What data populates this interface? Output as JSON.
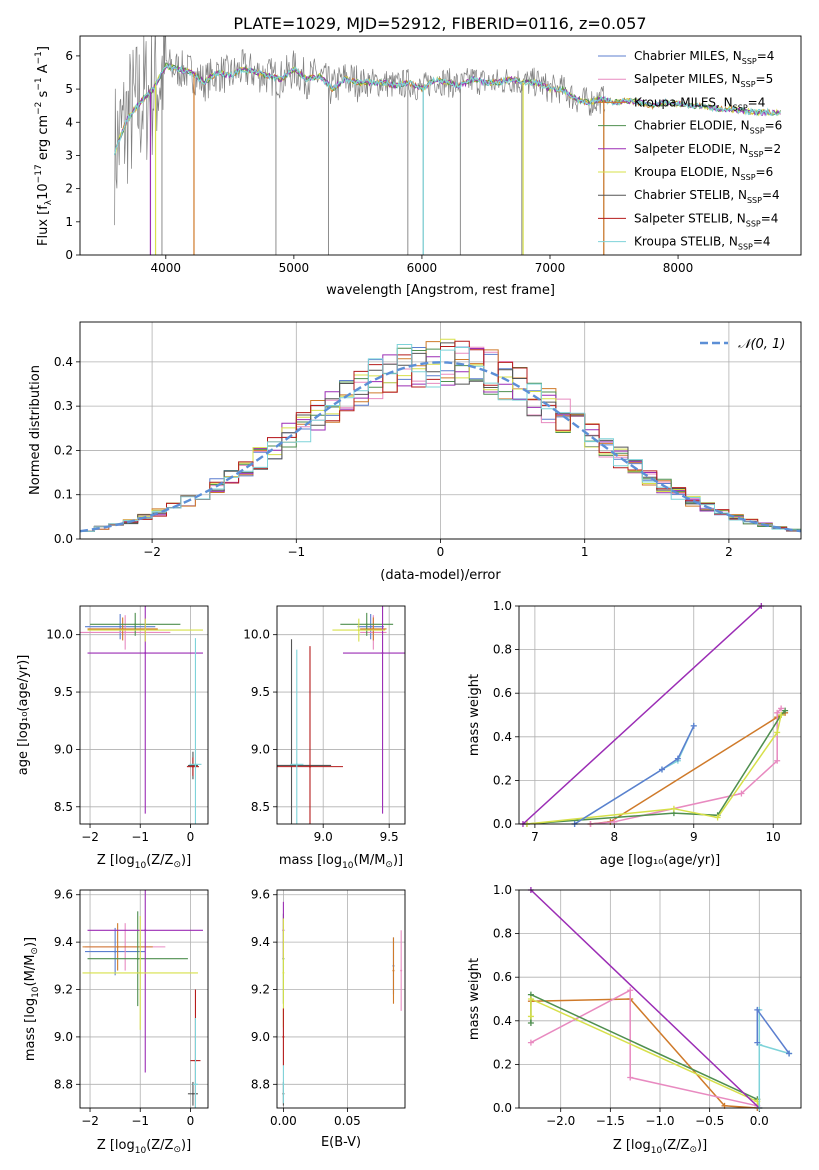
{
  "figure_title": "PLATE=1029, MJD=52912, FIBERID=0116, z=0.057",
  "colors": {
    "Chabrier MILES": "#5c7fcf",
    "Salpeter MILES": "#e88ac0",
    "Kroupa MILES": "#cf7a2a",
    "Chabrier ELODIE": "#4f8f4f",
    "Salpeter ELODIE": "#9b2db5",
    "Kroupa ELODIE": "#d7e04a",
    "Chabrier STELIB": "#555555",
    "Salpeter STELIB": "#b51c1c",
    "Kroupa STELIB": "#7ed3d9",
    "data": "#808080",
    "normal": "#5c8fd6",
    "grid": "#b0b0b0"
  },
  "chart_data": [
    {
      "id": "spectrum",
      "type": "line",
      "title": "PLATE=1029, MJD=52912, FIBERID=0116, z=0.057",
      "xlabel": "wavelength [Angstrom, rest frame]",
      "ylabel_main": "Flux [f",
      "ylabel_sub": "λ",
      "ylabel_rest": "10",
      "ylabel_exp1": "−17",
      "ylabel_mid": " erg cm",
      "ylabel_exp2": "−2",
      "ylabel_s": " s",
      "ylabel_exp3": "−1",
      "ylabel_a": " A",
      "ylabel_exp4": "−1",
      "ylabel_end": "]",
      "xlim": [
        3330,
        8960
      ],
      "ylim": [
        0,
        6.6
      ],
      "xticks": [
        4000,
        5000,
        6000,
        7000,
        8000
      ],
      "yticks": [
        0,
        1,
        2,
        3,
        4,
        5,
        6
      ],
      "grid": false,
      "legend_position": "right",
      "continuum": {
        "x": [
          3600,
          3700,
          3800,
          3900,
          4000,
          4100,
          4200,
          4300,
          4400,
          4500,
          4600,
          4700,
          4800,
          4900,
          5000,
          5100,
          5200,
          5300,
          5400,
          5500,
          5600,
          5700,
          5800,
          5900,
          6000,
          6100,
          6200,
          6300,
          6400,
          6500,
          6600,
          6700,
          6800,
          6900,
          7000,
          7100,
          7200,
          7300,
          7400,
          7500,
          7600,
          7700,
          7800,
          7900,
          8000,
          8100,
          8200,
          8300,
          8400,
          8500,
          8600,
          8700,
          8800
        ],
        "y": [
          3.1,
          4.1,
          4.6,
          5.0,
          5.7,
          5.6,
          5.5,
          5.2,
          5.5,
          5.4,
          5.6,
          5.5,
          5.4,
          5.3,
          5.6,
          5.3,
          5.4,
          5.0,
          5.3,
          5.2,
          5.2,
          5.2,
          5.1,
          5.2,
          5.0,
          5.3,
          5.2,
          5.1,
          5.3,
          5.2,
          5.2,
          5.3,
          5.2,
          5.2,
          5.0,
          5.0,
          4.7,
          4.6,
          4.7,
          4.6,
          4.65,
          4.6,
          4.5,
          4.6,
          4.55,
          4.5,
          4.5,
          4.4,
          4.4,
          4.35,
          4.3,
          4.3,
          4.3
        ]
      },
      "spikes": [
        3880,
        3970,
        4220,
        4860,
        5270,
        5890,
        6010,
        6300,
        6780,
        7420
      ],
      "series": [
        {
          "name_main": "Chabrier MILES, N",
          "name_sub": "SSP",
          "name_val": "=4",
          "color": "Chabrier MILES"
        },
        {
          "name_main": "Salpeter MILES, N",
          "name_sub": "SSP",
          "name_val": "=5",
          "color": "Salpeter MILES"
        },
        {
          "name_main": "Kroupa MILES, N",
          "name_sub": "SSP",
          "name_val": "=4",
          "color": "Kroupa MILES"
        },
        {
          "name_main": "Chabrier ELODIE, N",
          "name_sub": "SSP",
          "name_val": "=6",
          "color": "Chabrier ELODIE"
        },
        {
          "name_main": "Salpeter ELODIE, N",
          "name_sub": "SSP",
          "name_val": "=2",
          "color": "Salpeter ELODIE"
        },
        {
          "name_main": "Kroupa ELODIE, N",
          "name_sub": "SSP",
          "name_val": "=6",
          "color": "Kroupa ELODIE"
        },
        {
          "name_main": "Chabrier STELIB, N",
          "name_sub": "SSP",
          "name_val": "=4",
          "color": "Chabrier STELIB"
        },
        {
          "name_main": "Salpeter STELIB, N",
          "name_sub": "SSP",
          "name_val": "=4",
          "color": "Salpeter STELIB"
        },
        {
          "name_main": "Kroupa STELIB, N",
          "name_sub": "SSP",
          "name_val": "=4",
          "color": "Kroupa STELIB"
        }
      ]
    },
    {
      "id": "residuals",
      "type": "line",
      "xlabel": "(data-model)/error",
      "ylabel": "Normed distribution",
      "xlim": [
        -2.5,
        2.5
      ],
      "ylim": [
        0,
        0.49
      ],
      "xticks": [
        -2,
        -1,
        0,
        1,
        2
      ],
      "yticks": [
        0.0,
        0.1,
        0.2,
        0.3,
        0.4
      ],
      "grid": true,
      "legend_position": "top-right",
      "normal_label": "𝒩(0, 1)",
      "bin_edges_start": -2.5,
      "bin_width": 0.1
    },
    {
      "id": "age-vs-Z",
      "type": "scatter",
      "xlabel_main": "Z [log",
      "xlabel_sub": "10",
      "xlabel_rest": "(Z/Z",
      "xlabel_sun": "⊙",
      "xlabel_end": ")]",
      "ylabel": "age  [log₁₀(age/yr)]",
      "xlim": [
        -2.2,
        0.35
      ],
      "ylim": [
        8.35,
        10.25
      ],
      "xticks": [
        -2,
        -1,
        0
      ],
      "yticks": [
        8.5,
        9.0,
        9.5,
        10.0
      ],
      "points": [
        {
          "x": -1.4,
          "y": 10.07,
          "xerr": 0.7,
          "yerr": 0.11,
          "color": "Chabrier MILES"
        },
        {
          "x": -1.3,
          "y": 10.02,
          "xerr": 0.9,
          "yerr": 0.15,
          "color": "Salpeter MILES"
        },
        {
          "x": -1.35,
          "y": 10.05,
          "xerr": 0.7,
          "yerr": 0.1,
          "color": "Kroupa MILES"
        },
        {
          "x": -1.1,
          "y": 10.09,
          "xerr": 0.9,
          "yerr": 0.1,
          "color": "Chabrier ELODIE"
        },
        {
          "x": -0.9,
          "y": 9.84,
          "xerr": 1.15,
          "yerr": 1.4,
          "color": "Salpeter ELODIE"
        },
        {
          "x": -0.9,
          "y": 10.04,
          "xerr": 1.15,
          "yerr": 0.1,
          "color": "Kroupa ELODIE"
        },
        {
          "x": 0.05,
          "y": 8.86,
          "xerr": 0.1,
          "yerr": 0.12,
          "color": "Chabrier STELIB"
        },
        {
          "x": 0.05,
          "y": 8.85,
          "xerr": 0.12,
          "yerr": 0.08,
          "color": "Salpeter STELIB"
        },
        {
          "x": 0.1,
          "y": 8.87,
          "xerr": 0.12,
          "yerr": 1.1,
          "color": "Kroupa STELIB"
        }
      ]
    },
    {
      "id": "age-vs-mass",
      "type": "scatter",
      "xlabel_main": "mass [log",
      "xlabel_sub": "10",
      "xlabel_rest": "(M/M",
      "xlabel_sun": "⊙",
      "xlabel_end": ")]",
      "xlim": [
        8.65,
        9.62
      ],
      "ylim": [
        8.35,
        10.25
      ],
      "xticks": [
        9.0,
        9.5
      ],
      "yticks": [
        8.5,
        9.0,
        9.5,
        10.0
      ],
      "points": [
        {
          "x": 9.36,
          "y": 10.07,
          "xerr": 0.1,
          "yerr": 0.11,
          "color": "Chabrier MILES"
        },
        {
          "x": 9.38,
          "y": 10.02,
          "xerr": 0.1,
          "yerr": 0.15,
          "color": "Salpeter MILES"
        },
        {
          "x": 9.38,
          "y": 10.05,
          "xerr": 0.1,
          "yerr": 0.1,
          "color": "Kroupa MILES"
        },
        {
          "x": 9.33,
          "y": 10.09,
          "xerr": 0.2,
          "yerr": 0.1,
          "color": "Chabrier ELODIE"
        },
        {
          "x": 9.45,
          "y": 9.84,
          "xerr": 0.3,
          "yerr": 1.4,
          "color": "Salpeter ELODIE"
        },
        {
          "x": 9.27,
          "y": 10.04,
          "xerr": 0.2,
          "yerr": 0.1,
          "color": "Kroupa ELODIE"
        },
        {
          "x": 8.76,
          "y": 8.86,
          "xerr": 0.3,
          "yerr": 1.1,
          "color": "Chabrier STELIB"
        },
        {
          "x": 8.9,
          "y": 8.85,
          "xerr": 0.25,
          "yerr": 1.05,
          "color": "Salpeter STELIB"
        },
        {
          "x": 8.8,
          "y": 8.87,
          "xerr": 0.05,
          "yerr": 1.0,
          "color": "Kroupa STELIB"
        }
      ]
    },
    {
      "id": "mass-weight-vs-age",
      "type": "line",
      "xlabel": "age  [log₁₀(age/yr)]",
      "ylabel": "mass weight",
      "xlim": [
        6.8,
        10.35
      ],
      "ylim": [
        0,
        1.0
      ],
      "xticks": [
        7,
        8,
        9,
        10
      ],
      "yticks": [
        0.0,
        0.2,
        0.4,
        0.6,
        0.8,
        1.0
      ],
      "grid": true,
      "series": [
        {
          "color": "Kroupa MILES",
          "x": [
            7.7,
            7.95,
            10.05,
            10.15
          ],
          "y": [
            0.0,
            0.01,
            0.49,
            0.51
          ]
        },
        {
          "color": "Salpeter MILES",
          "x": [
            7.7,
            8.0,
            9.6,
            10.05,
            10.05,
            10.1
          ],
          "y": [
            0.0,
            0.01,
            0.14,
            0.29,
            0.51,
            0.53
          ]
        },
        {
          "color": "Chabrier ELODIE",
          "x": [
            6.9,
            8.75,
            9.3,
            10.1,
            10.15
          ],
          "y": [
            0.0,
            0.05,
            0.04,
            0.5,
            0.52
          ]
        },
        {
          "color": "Kroupa ELODIE",
          "x": [
            6.9,
            8.75,
            9.3,
            10.05,
            10.1
          ],
          "y": [
            0.0,
            0.07,
            0.03,
            0.42,
            0.5
          ]
        },
        {
          "color": "Salpeter ELODIE",
          "x": [
            6.85,
            9.85
          ],
          "y": [
            0.0,
            1.0
          ]
        },
        {
          "color": "Kroupa STELIB",
          "x": [
            7.5,
            8.6,
            8.8,
            9.0
          ],
          "y": [
            0.0,
            0.25,
            0.29,
            0.45
          ]
        },
        {
          "color": "Chabrier MILES",
          "x": [
            7.5,
            8.6,
            8.8,
            9.0
          ],
          "y": [
            0.0,
            0.25,
            0.3,
            0.45
          ]
        }
      ]
    },
    {
      "id": "mass-vs-Z",
      "type": "scatter",
      "ylabel_main": "mass [log",
      "ylabel_sub": "10",
      "ylabel_rest": "(M/M",
      "ylabel_sun": "⊙",
      "ylabel_end": ")]",
      "xlabel_main": "Z [log",
      "xlabel_sub": "10",
      "xlabel_rest": "(Z/Z",
      "xlabel_sun": "⊙",
      "xlabel_end": ")]",
      "xlim": [
        -2.2,
        0.35
      ],
      "ylim": [
        8.7,
        9.62
      ],
      "xticks": [
        -2,
        -1,
        0
      ],
      "yticks": [
        8.8,
        9.0,
        9.2,
        9.4,
        9.6
      ],
      "points": [
        {
          "x": -1.5,
          "y": 9.36,
          "xerr": 0.6,
          "yerr": 0.1,
          "color": "Chabrier MILES"
        },
        {
          "x": -1.3,
          "y": 9.38,
          "xerr": 0.8,
          "yerr": 0.1,
          "color": "Salpeter MILES"
        },
        {
          "x": -1.45,
          "y": 9.38,
          "xerr": 0.7,
          "yerr": 0.1,
          "color": "Kroupa MILES"
        },
        {
          "x": -1.05,
          "y": 9.33,
          "xerr": 1.0,
          "yerr": 0.2,
          "color": "Chabrier ELODIE"
        },
        {
          "x": -0.9,
          "y": 9.45,
          "xerr": 1.15,
          "yerr": 0.6,
          "color": "Salpeter ELODIE"
        },
        {
          "x": -1.0,
          "y": 9.27,
          "xerr": 1.15,
          "yerr": 0.24,
          "color": "Kroupa ELODIE"
        },
        {
          "x": 0.05,
          "y": 8.76,
          "xerr": 0.1,
          "yerr": 0.05,
          "color": "Chabrier STELIB"
        },
        {
          "x": 0.1,
          "y": 8.9,
          "xerr": 0.1,
          "yerr": 0.3,
          "color": "Salpeter STELIB"
        },
        {
          "x": 0.1,
          "y": 8.8,
          "xerr": 0.05,
          "yerr": 0.28,
          "color": "Kroupa STELIB"
        }
      ]
    },
    {
      "id": "mass-vs-EBV",
      "type": "scatter",
      "xlabel": "E(B-V)",
      "xlim": [
        -0.005,
        0.095
      ],
      "ylim": [
        8.7,
        9.62
      ],
      "xticks": [
        0.0,
        0.05
      ],
      "yticks": [
        8.8,
        9.0,
        9.2,
        9.4,
        9.6
      ],
      "points": [
        {
          "x": 0.086,
          "y": 9.3,
          "yerr": 0.12,
          "color": "Chabrier MILES"
        },
        {
          "x": 0.092,
          "y": 9.28,
          "yerr": 0.17,
          "color": "Salpeter MILES"
        },
        {
          "x": 0.086,
          "y": 9.28,
          "yerr": 0.14,
          "color": "Kroupa MILES"
        },
        {
          "x": 0.0,
          "y": 9.33,
          "yerr": 0.19,
          "color": "Chabrier ELODIE"
        },
        {
          "x": 0.0,
          "y": 9.45,
          "yerr": 0.12,
          "color": "Salpeter ELODIE"
        },
        {
          "x": 0.0,
          "y": 9.27,
          "yerr": 0.23,
          "color": "Kroupa ELODIE"
        },
        {
          "x": 0.0,
          "y": 8.76,
          "yerr": 0.05,
          "color": "Chabrier STELIB"
        },
        {
          "x": 0.0,
          "y": 9.0,
          "yerr": 0.12,
          "color": "Salpeter STELIB"
        },
        {
          "x": 0.0,
          "y": 8.8,
          "yerr": 0.08,
          "color": "Kroupa STELIB"
        }
      ]
    },
    {
      "id": "mass-weight-vs-Z",
      "type": "line",
      "xlabel_main": "Z [log",
      "xlabel_sub": "10",
      "xlabel_rest": "(Z/Z",
      "xlabel_sun": "⊙",
      "xlabel_end": ")]",
      "ylabel": "mass weight",
      "xlim": [
        -2.42,
        0.42
      ],
      "ylim": [
        0,
        1.0
      ],
      "xticks": [
        -2.0,
        -1.5,
        -1.0,
        -0.5,
        0.0
      ],
      "xtick_labels": [
        "−2.0",
        "−1.5",
        "−1.0",
        "−0.5",
        "0.0"
      ],
      "yticks": [
        0.0,
        0.2,
        0.4,
        0.6,
        0.8,
        1.0
      ],
      "grid": true,
      "series": [
        {
          "color": "Kroupa MILES",
          "x": [
            -2.3,
            -1.3,
            -0.35,
            -0.02
          ],
          "y": [
            0.49,
            0.5,
            0.01,
            0.0
          ]
        },
        {
          "color": "Salpeter MILES",
          "x": [
            -2.3,
            -1.3,
            -1.3,
            -0.02
          ],
          "y": [
            0.3,
            0.54,
            0.14,
            0.01
          ]
        },
        {
          "color": "Chabrier ELODIE",
          "x": [
            -2.3,
            -2.3,
            -0.02
          ],
          "y": [
            0.39,
            0.52,
            0.04
          ]
        },
        {
          "color": "Kroupa ELODIE",
          "x": [
            -2.3,
            -2.3,
            -0.02,
            0.0
          ],
          "y": [
            0.42,
            0.5,
            0.03,
            0.0
          ]
        },
        {
          "color": "Salpeter ELODIE",
          "x": [
            -2.3,
            0.0
          ],
          "y": [
            1.0,
            0.0
          ]
        },
        {
          "color": "Kroupa STELIB",
          "x": [
            0.0,
            0.0,
            0.0,
            0.3,
            0.3
          ],
          "y": [
            0.0,
            0.45,
            0.29,
            0.25,
            0.25
          ]
        },
        {
          "color": "Chabrier MILES",
          "x": [
            -0.02,
            -0.02,
            0.3
          ],
          "y": [
            0.3,
            0.45,
            0.25
          ]
        }
      ]
    }
  ]
}
